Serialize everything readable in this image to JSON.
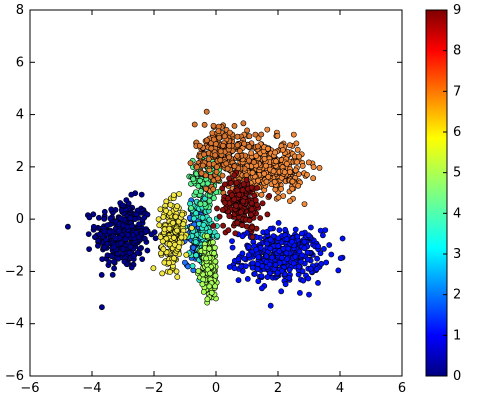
{
  "chart_data": {
    "type": "scatter",
    "title": "",
    "xlabel": "",
    "ylabel": "",
    "xlim": [
      -6,
      6
    ],
    "ylim": [
      -6,
      8
    ],
    "xticks": [
      "−6",
      "−4",
      "−2",
      "0",
      "2",
      "4",
      "6"
    ],
    "yticks": [
      "−6",
      "−4",
      "−2",
      "0",
      "2",
      "4",
      "6",
      "8"
    ],
    "grid": false,
    "colorbar": {
      "colormap": "jet",
      "range": [
        0,
        9
      ],
      "ticks": [
        "0",
        "1",
        "2",
        "3",
        "4",
        "5",
        "6",
        "7",
        "8",
        "9"
      ]
    },
    "clusters": [
      {
        "label": 0,
        "center": [
          -3.0,
          -0.6
        ],
        "spread": [
          0.8,
          1.2
        ],
        "count": 320,
        "color": "#00008f"
      },
      {
        "label": 1,
        "center": [
          2.1,
          -1.4
        ],
        "spread": [
          1.2,
          0.9
        ],
        "count": 380,
        "color": "#0010ff"
      },
      {
        "label": 2,
        "center": [
          -0.6,
          -0.6
        ],
        "spread": [
          0.35,
          1.0
        ],
        "count": 150,
        "color": "#1f6fff"
      },
      {
        "label": 3,
        "center": [
          -0.4,
          -0.5
        ],
        "spread": [
          0.35,
          1.5
        ],
        "count": 130,
        "color": "#30e8c8"
      },
      {
        "label": 4,
        "center": [
          -0.2,
          -1.9
        ],
        "spread": [
          0.25,
          1.1
        ],
        "count": 150,
        "color": "#a8ff5a"
      },
      {
        "label": 5,
        "center": [
          -0.3,
          1.6
        ],
        "spread": [
          0.45,
          0.9
        ],
        "count": 110,
        "color": "#56f08a"
      },
      {
        "label": 6,
        "center": [
          -1.4,
          -0.6
        ],
        "spread": [
          0.35,
          1.1
        ],
        "count": 220,
        "color": "#f2e640"
      },
      {
        "label": 7,
        "center": [
          1.6,
          2.0
        ],
        "spread": [
          1.1,
          0.9
        ],
        "count": 420,
        "color": "#f0883a"
      },
      {
        "label": 8,
        "center": [
          0.2,
          2.6
        ],
        "spread": [
          0.8,
          1.0
        ],
        "count": 200,
        "color": "#d9762f"
      },
      {
        "label": 9,
        "center": [
          0.8,
          0.6
        ],
        "spread": [
          0.6,
          0.9
        ],
        "count": 180,
        "color": "#8a0e0e"
      }
    ]
  }
}
